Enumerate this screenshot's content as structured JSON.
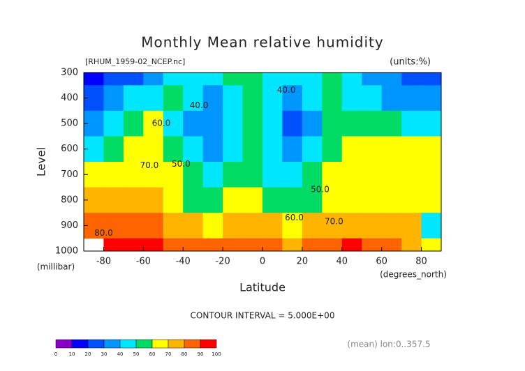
{
  "chart_data": {
    "type": "heatmap",
    "title": "Monthly Mean relative humidity",
    "subtitle": "[RHUM_1959-02_NCEP.nc]",
    "units": "(units:%)",
    "x_label": "Latitude",
    "x_units": "(degrees_north)",
    "y_label": "Level",
    "y_units": "(millibar)",
    "contour_note": "CONTOUR INTERVAL = 5.000E+00",
    "footer": "(mean) lon:0..357.5",
    "x": [
      -85,
      -75,
      -65,
      -55,
      -45,
      -35,
      -25,
      -15,
      -5,
      5,
      15,
      25,
      35,
      45,
      55,
      65,
      75,
      85
    ],
    "y": [
      300,
      400,
      500,
      600,
      700,
      800,
      900,
      1000
    ],
    "values": [
      [
        10,
        20,
        25,
        30,
        40,
        45,
        48,
        52,
        55,
        45,
        40,
        48,
        50,
        40,
        35,
        30,
        28,
        25
      ],
      [
        25,
        30,
        40,
        45,
        50,
        42,
        38,
        42,
        55,
        45,
        35,
        42,
        50,
        48,
        42,
        38,
        35,
        35
      ],
      [
        35,
        45,
        55,
        60,
        45,
        38,
        35,
        40,
        52,
        40,
        25,
        38,
        52,
        55,
        52,
        50,
        48,
        45
      ],
      [
        45,
        55,
        62,
        65,
        55,
        42,
        38,
        45,
        55,
        45,
        32,
        42,
        55,
        60,
        62,
        62,
        60,
        62
      ],
      [
        60,
        65,
        68,
        68,
        62,
        50,
        42,
        55,
        58,
        48,
        42,
        50,
        60,
        65,
        65,
        65,
        65,
        65
      ],
      [
        70,
        72,
        75,
        72,
        66,
        58,
        55,
        65,
        68,
        58,
        52,
        58,
        65,
        68,
        68,
        68,
        68,
        68
      ],
      [
        80,
        82,
        85,
        82,
        76,
        70,
        68,
        75,
        78,
        70,
        65,
        70,
        75,
        78,
        75,
        72,
        72,
        45
      ],
      [
        null,
        90,
        92,
        92,
        85,
        82,
        82,
        85,
        85,
        80,
        78,
        82,
        88,
        92,
        88,
        80,
        75,
        65
      ]
    ],
    "xlim": [
      -90,
      90
    ],
    "ylim": [
      1000,
      300
    ],
    "xticks": [
      -80,
      -60,
      -40,
      -20,
      0,
      20,
      40,
      60,
      80
    ],
    "yticks": [
      300,
      400,
      500,
      600,
      700,
      800,
      900,
      1000
    ],
    "levels": [
      0,
      10,
      20,
      30,
      40,
      50,
      60,
      70,
      80,
      90,
      100
    ],
    "colors": [
      "#8a00c8",
      "#0000ff",
      "#0050ff",
      "#0096ff",
      "#00e6ff",
      "#00dc64",
      "#ffff00",
      "#ffb400",
      "#ff6400",
      "#ff0000"
    ],
    "contour_labels": [
      {
        "label": "40.0",
        "x": -32,
        "y": 430
      },
      {
        "label": "40.0",
        "x": 12,
        "y": 370
      },
      {
        "label": "60.0",
        "x": -51,
        "y": 500
      },
      {
        "label": "70.0",
        "x": -57,
        "y": 665
      },
      {
        "label": "50.0",
        "x": -41,
        "y": 660
      },
      {
        "label": "50.0",
        "x": 29,
        "y": 760
      },
      {
        "label": "60.0",
        "x": 16,
        "y": 870
      },
      {
        "label": "70.0",
        "x": 36,
        "y": 885
      },
      {
        "label": "80.0",
        "x": -80,
        "y": 930
      }
    ]
  }
}
